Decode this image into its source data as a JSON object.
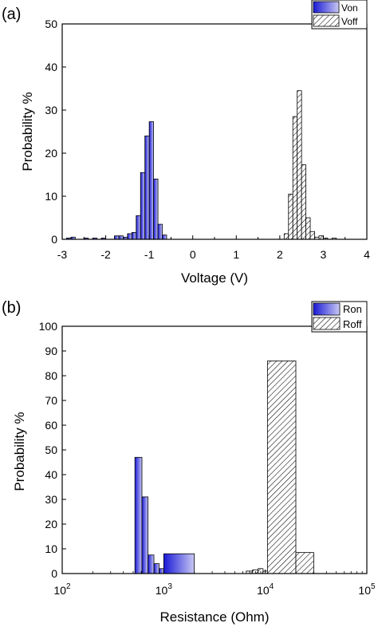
{
  "chart_data": [
    {
      "type": "bar",
      "panel_label": "(a)",
      "xlabel": "Voltage (V)",
      "ylabel": "Probability %",
      "xlim": [
        -3,
        4
      ],
      "ylim": [
        0,
        50
      ],
      "xticks": [
        "-3",
        "-2",
        "-1",
        "0",
        "1",
        "2",
        "3",
        "4"
      ],
      "yticks": [
        "0",
        "10",
        "20",
        "30",
        "40",
        "50"
      ],
      "bin_width": 0.1,
      "legend_position": "top-right",
      "series": [
        {
          "name": "Von",
          "fill": "gradient-blue",
          "bins": [
            {
              "x0": -2.9,
              "x1": -2.8,
              "y": 0.3
            },
            {
              "x0": -2.8,
              "x1": -2.7,
              "y": 0.5
            },
            {
              "x0": -2.5,
              "x1": -2.4,
              "y": 0.3
            },
            {
              "x0": -2.3,
              "x1": -2.2,
              "y": 0.3
            },
            {
              "x0": -2.1,
              "x1": -2.0,
              "y": 0.3
            },
            {
              "x0": -1.8,
              "x1": -1.7,
              "y": 0.8
            },
            {
              "x0": -1.7,
              "x1": -1.6,
              "y": 0.8
            },
            {
              "x0": -1.6,
              "x1": -1.5,
              "y": 0.5
            },
            {
              "x0": -1.5,
              "x1": -1.4,
              "y": 1.3
            },
            {
              "x0": -1.4,
              "x1": -1.3,
              "y": 1.6
            },
            {
              "x0": -1.3,
              "x1": -1.2,
              "y": 5.5
            },
            {
              "x0": -1.2,
              "x1": -1.1,
              "y": 15.5
            },
            {
              "x0": -1.1,
              "x1": -1.0,
              "y": 24.0
            },
            {
              "x0": -1.0,
              "x1": -0.9,
              "y": 27.3
            },
            {
              "x0": -0.9,
              "x1": -0.8,
              "y": 14.0
            },
            {
              "x0": -0.8,
              "x1": -0.7,
              "y": 3.5
            },
            {
              "x0": -0.7,
              "x1": -0.6,
              "y": 1.0
            }
          ]
        },
        {
          "name": "Voff",
          "fill": "hatch",
          "bins": [
            {
              "x0": 2.1,
              "x1": 2.2,
              "y": 1.3
            },
            {
              "x0": 2.2,
              "x1": 2.3,
              "y": 10.5
            },
            {
              "x0": 2.3,
              "x1": 2.4,
              "y": 28.5
            },
            {
              "x0": 2.4,
              "x1": 2.5,
              "y": 34.5
            },
            {
              "x0": 2.5,
              "x1": 2.6,
              "y": 17.3
            },
            {
              "x0": 2.6,
              "x1": 2.7,
              "y": 5.0
            },
            {
              "x0": 2.7,
              "x1": 2.8,
              "y": 1.8
            },
            {
              "x0": 2.8,
              "x1": 2.9,
              "y": 0.5
            },
            {
              "x0": 2.9,
              "x1": 3.0,
              "y": 0.8
            },
            {
              "x0": 3.0,
              "x1": 3.1,
              "y": 0.3
            },
            {
              "x0": 3.2,
              "x1": 3.3,
              "y": 0.3
            }
          ]
        }
      ]
    },
    {
      "type": "bar",
      "panel_label": "(b)",
      "xlabel": "Resistance (Ohm)",
      "ylabel": "Probability %",
      "xscale": "log",
      "xlim": [
        100,
        100000
      ],
      "ylim": [
        0,
        100
      ],
      "xticks": [
        {
          "base": "10",
          "exp": "2"
        },
        {
          "base": "10",
          "exp": "3"
        },
        {
          "base": "10",
          "exp": "4"
        },
        {
          "base": "10",
          "exp": "5"
        }
      ],
      "yticks": [
        "0",
        "10",
        "20",
        "30",
        "40",
        "50",
        "60",
        "70",
        "80",
        "90",
        "100"
      ],
      "legend_position": "top-right",
      "series": [
        {
          "name": "Ron",
          "fill": "gradient-blue",
          "bins": [
            {
              "x0": 520,
              "x1": 610,
              "y": 47.0
            },
            {
              "x0": 610,
              "x1": 700,
              "y": 31.0
            },
            {
              "x0": 700,
              "x1": 800,
              "y": 7.5
            },
            {
              "x0": 800,
              "x1": 900,
              "y": 4.0
            },
            {
              "x0": 900,
              "x1": 1000,
              "y": 2.0
            },
            {
              "x0": 1000,
              "x1": 2000,
              "y": 8.0
            }
          ]
        },
        {
          "name": "Roff",
          "fill": "hatch",
          "bins": [
            {
              "x0": 6500,
              "x1": 7500,
              "y": 1.0
            },
            {
              "x0": 7500,
              "x1": 8500,
              "y": 1.5
            },
            {
              "x0": 8500,
              "x1": 9500,
              "y": 2.0
            },
            {
              "x0": 9500,
              "x1": 10500,
              "y": 1.0
            },
            {
              "x0": 10500,
              "x1": 20000,
              "y": 86.0
            },
            {
              "x0": 20000,
              "x1": 30000,
              "y": 8.5
            }
          ]
        }
      ]
    }
  ]
}
